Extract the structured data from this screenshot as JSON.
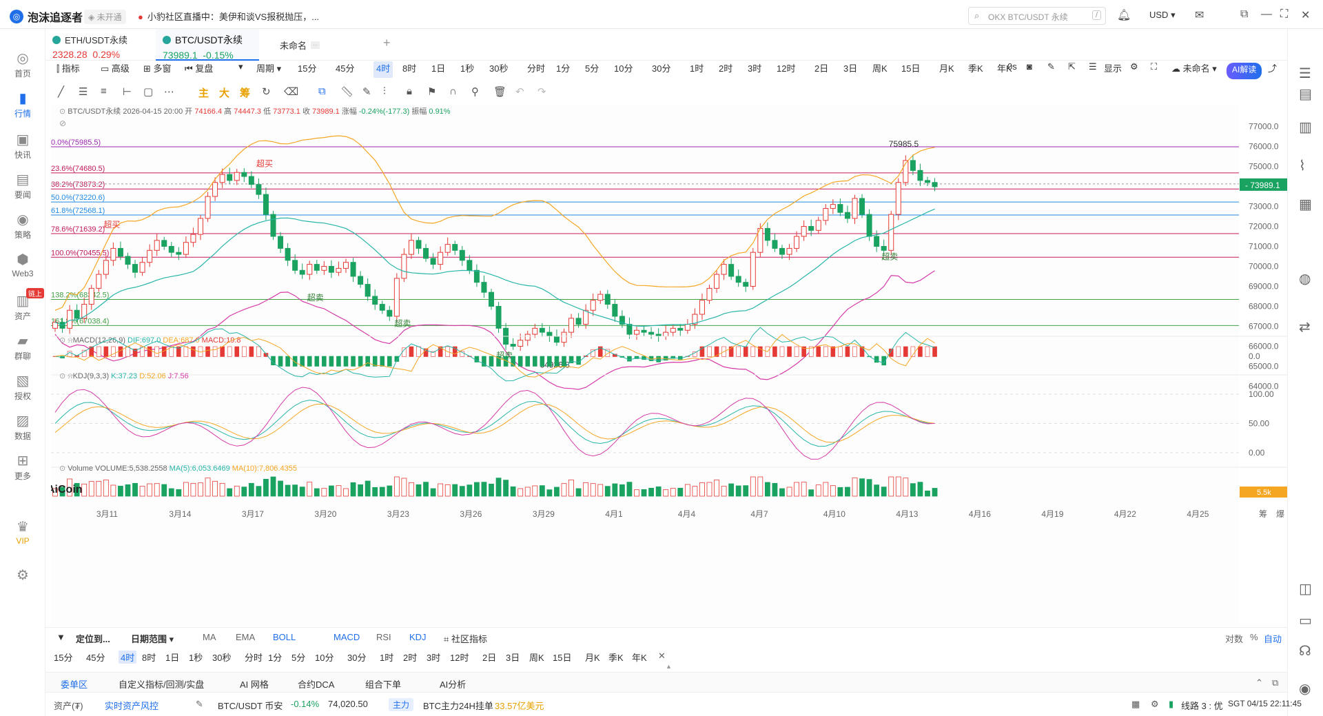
{
  "topbar": {
    "brand": "泡沫追逐者",
    "not_open": "未开通",
    "news": "小豹社区直播中：美伊和谈VS报税抛压，...",
    "search_placeholder": "OKX BTC/USDT 永续",
    "currency": "USD"
  },
  "sidebar": {
    "items": [
      {
        "label": "首页",
        "icon": "home-icon"
      },
      {
        "label": "行情",
        "icon": "chart-bar-icon"
      },
      {
        "label": "快讯",
        "icon": "flash-news-icon"
      },
      {
        "label": "要闻",
        "icon": "newspaper-icon"
      },
      {
        "label": "策略",
        "icon": "robot-icon"
      },
      {
        "label": "Web3",
        "icon": "web3-icon"
      },
      {
        "label": "资产",
        "icon": "wallet-icon",
        "badge": "链上"
      },
      {
        "label": "群聊",
        "icon": "chat-icon"
      },
      {
        "label": "授权",
        "icon": "authorize-icon"
      },
      {
        "label": "数据",
        "icon": "data-icon"
      },
      {
        "label": "更多",
        "icon": "more-icon"
      },
      {
        "label": "VIP",
        "icon": "vip-icon"
      }
    ]
  },
  "tabs": [
    {
      "name": "ETH/USDT永续",
      "price": "2328.28",
      "change": "0.29%",
      "color": "#e53935"
    },
    {
      "name": "BTC/USDT永续",
      "price": "73989.1",
      "change": "-0.15%",
      "color": "#1aa260"
    },
    {
      "name": "未命名",
      "price": "",
      "change": ""
    }
  ],
  "toolbar": {
    "indicator": "指标",
    "advanced": "高级",
    "multi": "多窗",
    "replay": "复盘",
    "period": "周期",
    "periods": [
      "15分",
      "45分",
      "4时",
      "8时",
      "1日",
      "1秒",
      "30秒",
      "分时",
      "1分",
      "5分",
      "10分",
      "30分",
      "1时",
      "2时",
      "3时",
      "12时",
      "2日",
      "3日",
      "周K",
      "15日",
      "月K",
      "季K",
      "年K"
    ],
    "active_period": "4时",
    "right_0s": "0s",
    "display": "显示",
    "unnamed": "未命名",
    "ai": "AI解读"
  },
  "drawbar": {
    "main": "主",
    "big": "大",
    "chip": "筹"
  },
  "chart_data": [
    {
      "type": "candlestick",
      "title": "BTC/USDT永续",
      "info": {
        "time": "2026-04-15 20:00",
        "open": "74166.4",
        "high": "74447.3",
        "low": "73773.1",
        "close": "73989.1",
        "change": "-0.24%(-177.3)",
        "amplitude": "0.91%"
      },
      "labels": {
        "open": "开",
        "high": "高",
        "low": "低",
        "close": "收",
        "change": "涨幅",
        "amplitude": "振幅"
      },
      "y_ticks": [
        "77000.0",
        "76000.0",
        "75000.0",
        "74000.0",
        "73000.0",
        "72000.0",
        "71000.0",
        "70000.0",
        "69000.0",
        "68000.0",
        "67000.0",
        "66000.0",
        "65000.0",
        "64000.0"
      ],
      "ylim": [
        63600,
        77400
      ],
      "last_price": "73989.1",
      "fib_levels": [
        {
          "label": "0.0%(75985.5)",
          "value": 75985.5,
          "color": "#9c27b0"
        },
        {
          "label": "23.6%(74680.5)",
          "value": 74680.5,
          "color": "#c2185b"
        },
        {
          "label": "38.2%(73873.2)",
          "value": 73873.2,
          "color": "#c2185b"
        },
        {
          "label": "50.0%(73220.6)",
          "value": 73220.6,
          "color": "#1e88e5"
        },
        {
          "label": "61.8%(72568.1)",
          "value": 72568.1,
          "color": "#1e88e5"
        },
        {
          "label": "78.6%(71639.2)",
          "value": 71639.2,
          "color": "#c2185b"
        },
        {
          "label": "100.0%(70455.5)",
          "value": 70455.5,
          "color": "#c2185b"
        },
        {
          "label": "138.2%(68342.5)",
          "value": 68342.5,
          "color": "#43a047"
        },
        {
          "label": "161.8%(67038.4)",
          "value": 67038.4,
          "color": "#43a047"
        }
      ],
      "annotations": [
        {
          "text": "超买",
          "color": "#e53935",
          "i": 29,
          "value": 75000
        },
        {
          "text": "超买",
          "color": "#e53935",
          "i": 8,
          "value": 71950
        },
        {
          "text": "超卖",
          "color": "#2e7d32",
          "i": 36,
          "value": 68300
        },
        {
          "text": "超卖",
          "color": "#2e7d32",
          "i": 48,
          "value": 67000
        },
        {
          "text": "超卖",
          "color": "#2e7d32",
          "i": 62,
          "value": 65400
        },
        {
          "text": "超卖",
          "color": "#2e7d32",
          "i": 115,
          "value": 70350
        },
        {
          "text": "75985.5",
          "color": "#333",
          "i": 116,
          "value": 75985.5
        },
        {
          "text": "64936.8",
          "color": "#333",
          "i": 68,
          "value": 64936.8
        }
      ],
      "x_ticks": [
        {
          "label": "3月11",
          "i": 7
        },
        {
          "label": "3月14",
          "i": 17
        },
        {
          "label": "3月17",
          "i": 27
        },
        {
          "label": "3月20",
          "i": 37
        },
        {
          "label": "3月23",
          "i": 47
        },
        {
          "label": "3月26",
          "i": 57
        },
        {
          "label": "3月29",
          "i": 67
        },
        {
          "label": "4月1",
          "i": 77
        },
        {
          "label": "4月4",
          "i": 87
        },
        {
          "label": "4月7",
          "i": 97
        },
        {
          "label": "4月10",
          "i": 107
        },
        {
          "label": "4月13",
          "i": 117
        },
        {
          "label": "4月16",
          "i": 127
        },
        {
          "label": "4月19",
          "i": 137
        },
        {
          "label": "4月22",
          "i": 147
        },
        {
          "label": "4月25",
          "i": 157
        }
      ],
      "closes": [
        67200,
        66900,
        67800,
        67400,
        68100,
        68900,
        69600,
        70300,
        70900,
        70500,
        70100,
        69700,
        70200,
        70800,
        71300,
        71000,
        70700,
        70600,
        71200,
        71600,
        72400,
        73500,
        74200,
        74600,
        74300,
        74700,
        74500,
        74100,
        73600,
        72600,
        71500,
        70900,
        70300,
        69800,
        69600,
        70100,
        69800,
        70000,
        69700,
        69900,
        70200,
        69500,
        69100,
        68500,
        68100,
        67800,
        67500,
        69400,
        70600,
        71300,
        70900,
        70400,
        70100,
        70700,
        71100,
        70800,
        70300,
        69800,
        69200,
        68700,
        68000,
        66900,
        66100,
        66000,
        66300,
        66600,
        66900,
        66700,
        66500,
        66200,
        66700,
        67400,
        67100,
        67800,
        68300,
        68600,
        68100,
        67500,
        67100,
        66600,
        66800,
        66700,
        66600,
        66500,
        66700,
        66900,
        66800,
        67100,
        67600,
        68300,
        68900,
        69600,
        70100,
        69500,
        69200,
        69000,
        70700,
        71900,
        71300,
        70900,
        70600,
        70900,
        71500,
        72000,
        71800,
        72300,
        72900,
        73100,
        72700,
        72400,
        73400,
        72600,
        71500,
        71000,
        70800,
        72600,
        74200,
        75300,
        74800,
        74300,
        74200,
        73989
      ],
      "opens_offset": [
        300,
        -250
      ],
      "ma_upper_label": "BOLL upper",
      "legend_visible": false
    },
    {
      "type": "macd",
      "label": "MACD(12,26,9)",
      "dif": "DIF:697.0",
      "dea": "DEA:687.0",
      "macd": "MACD:19.8",
      "y_ticks": [
        "0.0"
      ]
    },
    {
      "type": "kdj",
      "label": "KDJ(9,3,3)",
      "k": "K:37.23",
      "d": "D:52.06",
      "j": "J:7.56",
      "y_ticks": [
        "100.00",
        "50.00",
        "0.00"
      ]
    },
    {
      "type": "volume",
      "label": "Volume",
      "vol": "VOLUME:5,538.2558",
      "ma5": "MA(5):6,053.6469",
      "ma10": "MA(10):7,806.4355",
      "last": "5.5k"
    }
  ],
  "colors": {
    "up": "#e53935",
    "down": "#1aa260",
    "accent": "#1f6feb"
  },
  "bottom": {
    "locate": "定位到...",
    "daterange": "日期范围",
    "inds": [
      "MA",
      "EMA",
      "BOLL",
      "MACD",
      "RSI",
      "KDJ"
    ],
    "community": "社区指标",
    "periods": [
      "15分",
      "45分",
      "4时",
      "8时",
      "1日",
      "1秒",
      "30秒",
      "分时",
      "1分",
      "5分",
      "10分",
      "30分",
      "1时",
      "2时",
      "3时",
      "12时",
      "2日",
      "3日",
      "周K",
      "15日",
      "月K",
      "季K",
      "年K"
    ],
    "active_period": "4时",
    "right": {
      "log": "对数",
      "pct": "%",
      "auto": "自动",
      "chip": "筹",
      "burst": "爆"
    },
    "tabs": [
      "委单区",
      "自定义指标/回测/实盘",
      "AI 网格",
      "合约DCA",
      "组合下单",
      "AI分析"
    ],
    "status": {
      "asset": "资产(₮)",
      "risk": "实时资产风控",
      "pair": "BTC/USDT 币安",
      "chg": "-0.14%",
      "price": "74,020.50",
      "main": "主力",
      "main_text": "BTC主力24H挂单",
      "main_val": "33.57亿美元",
      "line": "线路 3 : 优",
      "clock": "SGT 04/15 22:11:45"
    }
  }
}
